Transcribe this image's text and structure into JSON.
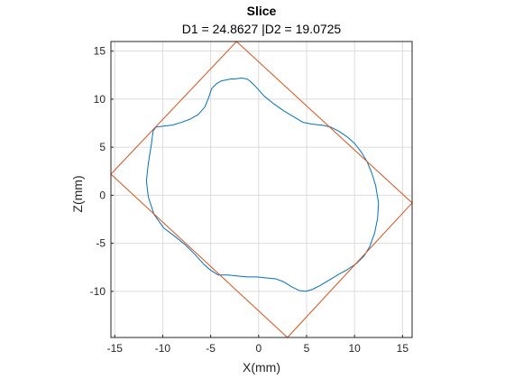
{
  "chart_data": {
    "type": "line",
    "title": "Slice",
    "subtitle": "D1 = 24.8627 |D2 = 19.0725",
    "xlabel": "X(mm)",
    "ylabel": "Z(mm)",
    "xlim": [
      -15.4,
      16
    ],
    "ylim": [
      -14.8,
      16
    ],
    "xticks": [
      -15,
      -10,
      -5,
      0,
      5,
      10,
      15
    ],
    "yticks": [
      -10,
      -5,
      0,
      5,
      10,
      15
    ],
    "grid": true,
    "series": [
      {
        "color": "#0072BD",
        "x": [
          -2.5,
          -1.8,
          -1.2,
          -0.8,
          -0.3,
          0.6,
          1.6,
          2.6,
          3.6,
          4.6,
          5.6,
          6.6,
          7.5,
          8.3,
          9.2,
          10.0,
          10.7,
          11.3,
          11.8,
          12.2,
          12.5,
          12.4,
          12.1,
          11.6,
          11.0,
          10.2,
          9.3,
          8.4,
          7.4,
          6.4,
          5.6,
          4.9,
          4.2,
          3.4,
          2.6,
          1.8,
          0.8,
          -0.2,
          -1.2,
          -2.2,
          -3.2,
          -4.2,
          -5.0,
          -5.7,
          -6.6,
          -7.6,
          -8.7,
          -9.9,
          -10.9,
          -11.5,
          -11.7,
          -11.5,
          -11.2,
          -11.0,
          -10.7,
          -9.9,
          -9.0,
          -8.0,
          -7.2,
          -6.3,
          -5.6,
          -5.2,
          -4.9,
          -4.4,
          -3.9,
          -3.4,
          -2.9,
          -2.5
        ],
        "y": [
          12.1,
          12.2,
          12.1,
          11.8,
          11.3,
          10.3,
          9.5,
          8.8,
          8.2,
          7.6,
          7.4,
          7.3,
          7.1,
          6.7,
          6.1,
          5.4,
          4.5,
          3.5,
          2.3,
          1.0,
          -0.8,
          -2.4,
          -3.9,
          -5.3,
          -6.3,
          -7.1,
          -7.7,
          -8.2,
          -8.8,
          -9.4,
          -9.8,
          -10.0,
          -9.9,
          -9.5,
          -9.0,
          -8.7,
          -8.6,
          -8.5,
          -8.5,
          -8.4,
          -8.3,
          -8.3,
          -7.8,
          -7.2,
          -6.2,
          -5.2,
          -4.3,
          -3.4,
          -2.0,
          -0.2,
          1.5,
          3.3,
          5.2,
          6.7,
          7.1,
          7.2,
          7.3,
          7.6,
          7.9,
          8.4,
          9.2,
          10.2,
          11.1,
          11.6,
          11.9,
          12.0,
          12.1,
          12.1
        ]
      },
      {
        "color": "#D95319",
        "x": [
          -2.3,
          16.0,
          3.0,
          -15.4,
          -2.3
        ],
        "y": [
          16.0,
          -0.8,
          -14.8,
          2.2,
          16.0
        ]
      }
    ]
  }
}
